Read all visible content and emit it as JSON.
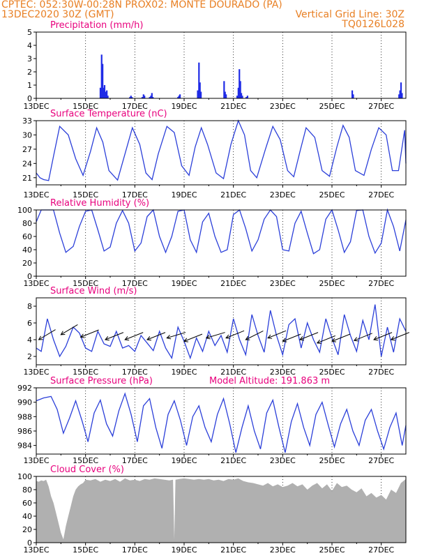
{
  "header": {
    "line1_left": "CPTEC:   052:30W-00:28N   PROX02: MONTE DOURADO (PA)",
    "line2_left": "13DEC2020 30Z (GMT)",
    "line2_right": "Vertical Grid Line: 30Z",
    "line3_right": "TQ0126L028"
  },
  "colors": {
    "header": "#e87f23",
    "title": "#e8007d",
    "line": "#2b3fd9",
    "bar": "#1f2be6",
    "cloud": "#b0b0b0",
    "grid": "#000000",
    "axis": "#000000"
  },
  "chart_data": [
    {
      "id": "precip",
      "type": "bar",
      "title": "Precipitation (mm/h)",
      "ylim": [
        0,
        5
      ],
      "yticks": [
        0,
        1,
        2,
        3,
        4,
        5
      ],
      "x_ticks": [
        "13DEC",
        "15DEC",
        "17DEC",
        "19DEC",
        "21DEC",
        "23DEC",
        "25DEC",
        "27DEC"
      ],
      "x_tick_days": [
        0,
        2,
        4,
        6,
        8,
        10,
        12,
        14
      ],
      "x_range_days": [
        0,
        15
      ],
      "bars": [
        {
          "d": 2.6,
          "v": 0.8
        },
        {
          "d": 2.65,
          "v": 3.3
        },
        {
          "d": 2.69,
          "v": 2.6
        },
        {
          "d": 2.73,
          "v": 0.8
        },
        {
          "d": 2.77,
          "v": 1.0
        },
        {
          "d": 2.81,
          "v": 0.5
        },
        {
          "d": 2.86,
          "v": 0.6
        },
        {
          "d": 2.9,
          "v": 0.2
        },
        {
          "d": 3.8,
          "v": 0.1
        },
        {
          "d": 3.84,
          "v": 0.2
        },
        {
          "d": 3.88,
          "v": 0.1
        },
        {
          "d": 4.3,
          "v": 0.1
        },
        {
          "d": 4.35,
          "v": 0.3
        },
        {
          "d": 4.39,
          "v": 0.2
        },
        {
          "d": 4.6,
          "v": 0.1
        },
        {
          "d": 4.65,
          "v": 0.2
        },
        {
          "d": 4.69,
          "v": 0.4
        },
        {
          "d": 4.73,
          "v": 0.1
        },
        {
          "d": 5.75,
          "v": 0.1
        },
        {
          "d": 5.79,
          "v": 0.2
        },
        {
          "d": 5.83,
          "v": 0.3
        },
        {
          "d": 6.55,
          "v": 0.6
        },
        {
          "d": 6.6,
          "v": 2.7
        },
        {
          "d": 6.64,
          "v": 1.2
        },
        {
          "d": 6.68,
          "v": 0.5
        },
        {
          "d": 7.62,
          "v": 1.3
        },
        {
          "d": 7.66,
          "v": 0.5
        },
        {
          "d": 7.7,
          "v": 0.3
        },
        {
          "d": 8.15,
          "v": 0.2
        },
        {
          "d": 8.2,
          "v": 0.8
        },
        {
          "d": 8.24,
          "v": 2.2
        },
        {
          "d": 8.28,
          "v": 1.3
        },
        {
          "d": 8.32,
          "v": 0.4
        },
        {
          "d": 8.36,
          "v": 0.2
        },
        {
          "d": 8.52,
          "v": 0.1
        },
        {
          "d": 8.57,
          "v": 0.2
        },
        {
          "d": 12.82,
          "v": 0.6
        },
        {
          "d": 12.86,
          "v": 0.3
        },
        {
          "d": 14.72,
          "v": 0.3
        },
        {
          "d": 14.76,
          "v": 0.6
        },
        {
          "d": 14.8,
          "v": 1.2
        },
        {
          "d": 14.84,
          "v": 0.4
        }
      ]
    },
    {
      "id": "temp",
      "type": "line",
      "title": "Surface Temperature (nC)",
      "ylim": [
        19.5,
        33
      ],
      "yticks": [
        21,
        24,
        27,
        30,
        33
      ],
      "x_ticks": [
        "13DEC",
        "15DEC",
        "17DEC",
        "19DEC",
        "21DEC",
        "23DEC",
        "25DEC",
        "27DEC"
      ],
      "x_tick_days": [
        0,
        2,
        4,
        6,
        8,
        10,
        12,
        14
      ],
      "x_range_days": [
        0,
        15
      ],
      "x": [
        0,
        0.15,
        0.3,
        0.5,
        0.7,
        0.95,
        1.3,
        1.6,
        1.9,
        2.2,
        2.45,
        2.7,
        2.95,
        3.3,
        3.6,
        3.9,
        4.2,
        4.45,
        4.7,
        4.95,
        5.3,
        5.6,
        5.9,
        6.2,
        6.45,
        6.7,
        6.95,
        7.3,
        7.6,
        7.9,
        8.2,
        8.45,
        8.7,
        8.95,
        9.3,
        9.6,
        9.9,
        10.2,
        10.45,
        10.7,
        10.95,
        11.3,
        11.6,
        11.9,
        12.2,
        12.45,
        12.7,
        12.95,
        13.3,
        13.6,
        13.9,
        14.2,
        14.45,
        14.7,
        14.95,
        15.0
      ],
      "y": [
        22.0,
        21.0,
        20.6,
        20.4,
        25.5,
        31.8,
        30.0,
        25.0,
        21.5,
        26.5,
        31.5,
        28.5,
        22.5,
        20.5,
        26.0,
        31.5,
        28.0,
        22.0,
        20.6,
        26.0,
        31.8,
        30.5,
        23.5,
        21.5,
        27.5,
        31.5,
        28.0,
        22.0,
        20.8,
        28.0,
        33.0,
        30.0,
        22.5,
        21.0,
        27.0,
        31.8,
        29.0,
        22.5,
        21.2,
        26.5,
        31.5,
        29.5,
        22.5,
        21.3,
        27.5,
        32.0,
        29.5,
        22.5,
        21.5,
        27.0,
        31.5,
        30.0,
        22.5,
        22.5,
        31.0,
        24.0
      ]
    },
    {
      "id": "rh",
      "type": "line",
      "title": "Relative Humidity (%)",
      "ylim": [
        0,
        100
      ],
      "yticks": [
        0,
        20,
        40,
        60,
        80,
        100
      ],
      "x_ticks": [
        "13DEC",
        "15DEC",
        "17DEC",
        "19DEC",
        "21DEC",
        "23DEC",
        "25DEC",
        "27DEC"
      ],
      "x_tick_days": [
        0,
        2,
        4,
        6,
        8,
        10,
        12,
        14
      ],
      "x_range_days": [
        0,
        15
      ],
      "x": [
        0,
        0.2,
        0.45,
        0.7,
        0.95,
        1.2,
        1.5,
        1.75,
        2.0,
        2.25,
        2.5,
        2.75,
        3.0,
        3.25,
        3.5,
        3.75,
        4.0,
        4.25,
        4.5,
        4.75,
        5.0,
        5.25,
        5.5,
        5.75,
        6.0,
        6.25,
        6.5,
        6.75,
        7.0,
        7.25,
        7.5,
        7.75,
        8.0,
        8.25,
        8.5,
        8.75,
        9.0,
        9.25,
        9.5,
        9.75,
        10.0,
        10.25,
        10.5,
        10.75,
        11.0,
        11.25,
        11.5,
        11.75,
        12.0,
        12.25,
        12.5,
        12.75,
        13.0,
        13.25,
        13.5,
        13.75,
        14.0,
        14.25,
        14.5,
        14.75,
        15.0
      ],
      "y": [
        82,
        100,
        100,
        100,
        65,
        36,
        45,
        75,
        98,
        100,
        70,
        38,
        44,
        80,
        99,
        80,
        38,
        50,
        90,
        100,
        60,
        36,
        60,
        98,
        100,
        55,
        36,
        82,
        95,
        60,
        36,
        40,
        93,
        100,
        72,
        38,
        55,
        86,
        100,
        90,
        40,
        38,
        80,
        98,
        65,
        34,
        40,
        86,
        100,
        70,
        36,
        52,
        99,
        100,
        60,
        35,
        50,
        100,
        75,
        38,
        85
      ]
    },
    {
      "id": "wind",
      "type": "line",
      "title": "Surface Wind (m/s)",
      "ylim": [
        1,
        9
      ],
      "yticks": [
        2,
        4,
        6,
        8
      ],
      "x_ticks": [
        "13DEC",
        "15DEC",
        "17DEC",
        "19DEC",
        "21DEC",
        "23DEC",
        "25DEC",
        "27DEC"
      ],
      "x_tick_days": [
        0,
        2,
        4,
        6,
        8,
        10,
        12,
        14
      ],
      "x_range_days": [
        0,
        15
      ],
      "x": [
        0,
        0.2,
        0.45,
        0.7,
        0.95,
        1.2,
        1.5,
        1.75,
        2.0,
        2.25,
        2.5,
        2.75,
        3.0,
        3.25,
        3.5,
        3.75,
        4.0,
        4.25,
        4.5,
        4.75,
        5.0,
        5.25,
        5.5,
        5.75,
        6.0,
        6.25,
        6.5,
        6.75,
        7.0,
        7.25,
        7.5,
        7.75,
        8.0,
        8.25,
        8.5,
        8.75,
        9.0,
        9.25,
        9.5,
        9.75,
        10.0,
        10.25,
        10.5,
        10.75,
        11.0,
        11.25,
        11.5,
        11.75,
        12.0,
        12.25,
        12.5,
        12.75,
        13.0,
        13.25,
        13.5,
        13.75,
        14.0,
        14.25,
        14.5,
        14.75,
        15.0
      ],
      "y": [
        3.0,
        2.6,
        6.5,
        4.0,
        2.0,
        3.2,
        5.5,
        4.8,
        3.0,
        2.6,
        5.0,
        3.5,
        3.2,
        5.0,
        3.0,
        3.3,
        2.6,
        4.5,
        3.6,
        2.7,
        5.0,
        3.0,
        1.8,
        5.5,
        3.8,
        1.8,
        4.2,
        2.6,
        5.0,
        3.3,
        4.5,
        2.5,
        6.5,
        4.0,
        2.2,
        7.0,
        4.5,
        2.5,
        7.5,
        4.5,
        2.2,
        5.8,
        6.5,
        3.0,
        6.0,
        4.0,
        2.5,
        6.5,
        4.2,
        2.2,
        7.0,
        4.5,
        2.6,
        6.3,
        4.0,
        8.2,
        2.0,
        5.5,
        2.5,
        6.5,
        5.0
      ],
      "arrows": [
        {
          "d": 0.1,
          "v": 4.0,
          "dx": 1,
          "dy": 0.6
        },
        {
          "d": 1.0,
          "v": 4.6,
          "dx": 1,
          "dy": 0.6
        },
        {
          "d": 1.8,
          "v": 4.3,
          "dx": 1,
          "dy": 0.4
        },
        {
          "d": 2.8,
          "v": 4.0,
          "dx": 1,
          "dy": 0.4
        },
        {
          "d": 3.6,
          "v": 4.0,
          "dx": 1,
          "dy": 0.4
        },
        {
          "d": 4.5,
          "v": 4.0,
          "dx": 1,
          "dy": 0.4
        },
        {
          "d": 5.3,
          "v": 4.2,
          "dx": 1,
          "dy": 0.3
        },
        {
          "d": 6.0,
          "v": 3.8,
          "dx": 1,
          "dy": 0.4
        },
        {
          "d": 6.9,
          "v": 4.2,
          "dx": 1,
          "dy": 0.3
        },
        {
          "d": 7.7,
          "v": 4.2,
          "dx": 1,
          "dy": 0.4
        },
        {
          "d": 8.5,
          "v": 4.0,
          "dx": 1,
          "dy": 0.5
        },
        {
          "d": 9.4,
          "v": 4.2,
          "dx": 1,
          "dy": 0.4
        },
        {
          "d": 10.0,
          "v": 3.8,
          "dx": 1,
          "dy": 0.4
        },
        {
          "d": 10.7,
          "v": 4.0,
          "dx": 1,
          "dy": 0.4
        },
        {
          "d": 11.4,
          "v": 3.6,
          "dx": 1,
          "dy": 0.4
        },
        {
          "d": 12.0,
          "v": 3.8,
          "dx": 1,
          "dy": 0.4
        },
        {
          "d": 12.9,
          "v": 3.9,
          "dx": 1,
          "dy": 0.4
        },
        {
          "d": 13.7,
          "v": 4.0,
          "dx": 1,
          "dy": 0.4
        },
        {
          "d": 14.4,
          "v": 4.0,
          "dx": 1,
          "dy": 0.4
        }
      ]
    },
    {
      "id": "press",
      "type": "line",
      "title": "Surface Pressure (hPa)",
      "subtitle": "Model Altitude: 191.863 m",
      "ylim": [
        982.8,
        992
      ],
      "yticks": [
        984,
        986,
        988,
        990,
        992
      ],
      "x_ticks": [
        "13DEC",
        "15DEC",
        "17DEC",
        "19DEC",
        "21DEC",
        "23DEC",
        "25DEC",
        "27DEC"
      ],
      "x_tick_days": [
        0,
        2,
        4,
        6,
        8,
        10,
        12,
        14
      ],
      "x_range_days": [
        0,
        15
      ],
      "x": [
        0,
        0.3,
        0.6,
        0.85,
        1.1,
        1.35,
        1.6,
        1.85,
        2.1,
        2.35,
        2.6,
        2.85,
        3.1,
        3.35,
        3.6,
        3.85,
        4.1,
        4.35,
        4.6,
        4.85,
        5.1,
        5.35,
        5.6,
        5.85,
        6.1,
        6.35,
        6.6,
        6.85,
        7.1,
        7.35,
        7.6,
        7.85,
        8.1,
        8.35,
        8.6,
        8.85,
        9.1,
        9.35,
        9.6,
        9.85,
        10.1,
        10.35,
        10.6,
        10.85,
        11.1,
        11.35,
        11.6,
        11.85,
        12.1,
        12.35,
        12.6,
        12.85,
        13.1,
        13.35,
        13.6,
        13.85,
        14.1,
        14.35,
        14.6,
        14.85,
        15.0
      ],
      "y": [
        990.2,
        990.6,
        990.8,
        989.0,
        985.7,
        987.8,
        990.2,
        987.5,
        984.5,
        988.5,
        990.3,
        987.0,
        985.3,
        988.8,
        991.2,
        988.3,
        984.5,
        989.5,
        990.5,
        986.5,
        983.6,
        988.3,
        990.2,
        987.5,
        984.0,
        988.0,
        989.5,
        986.5,
        984.5,
        988.3,
        990.5,
        987.0,
        983.0,
        986.5,
        989.5,
        986.0,
        983.5,
        988.5,
        990.3,
        986.5,
        983.0,
        987.3,
        989.8,
        986.5,
        984.0,
        988.3,
        990.0,
        986.8,
        983.8,
        987.0,
        989.0,
        986.0,
        984.0,
        987.5,
        989.0,
        986.0,
        983.5,
        986.5,
        988.5,
        984.0,
        986.8
      ]
    },
    {
      "id": "cloud",
      "type": "area",
      "title": "Cloud Cover (%)",
      "ylim": [
        0,
        100
      ],
      "yticks": [
        0,
        20,
        40,
        60,
        80,
        100
      ],
      "x_ticks": [
        "13DEC",
        "15DEC",
        "17DEC",
        "19DEC",
        "21DEC",
        "23DEC",
        "25DEC",
        "27DEC"
      ],
      "x_tick_days": [
        0,
        2,
        4,
        6,
        8,
        10,
        12,
        14
      ],
      "x_range_days": [
        0,
        15
      ],
      "x": [
        0,
        0.1,
        0.2,
        0.3,
        0.4,
        0.5,
        0.6,
        0.7,
        0.8,
        0.9,
        1.0,
        1.1,
        1.2,
        1.3,
        1.4,
        1.5,
        1.6,
        1.7,
        1.8,
        1.9,
        2.0,
        2.2,
        2.4,
        2.6,
        2.8,
        3.0,
        3.2,
        3.4,
        3.6,
        3.8,
        4.0,
        4.2,
        4.4,
        4.6,
        4.8,
        5.0,
        5.2,
        5.4,
        5.55,
        5.6,
        5.65,
        5.8,
        6.0,
        6.2,
        6.4,
        6.6,
        6.8,
        7.0,
        7.2,
        7.4,
        7.6,
        7.8,
        8.0,
        8.2,
        8.4,
        8.6,
        8.8,
        9.0,
        9.2,
        9.4,
        9.6,
        9.8,
        10.0,
        10.2,
        10.4,
        10.6,
        10.8,
        11.0,
        11.2,
        11.4,
        11.6,
        11.8,
        12.0,
        12.2,
        12.4,
        12.6,
        12.8,
        13.0,
        13.2,
        13.4,
        13.6,
        13.8,
        14.0,
        14.2,
        14.4,
        14.6,
        14.8,
        15.0
      ],
      "y": [
        93,
        92,
        94,
        93,
        95,
        85,
        70,
        60,
        45,
        30,
        15,
        5,
        25,
        40,
        55,
        70,
        80,
        85,
        88,
        90,
        95,
        94,
        96,
        92,
        95,
        93,
        96,
        92,
        97,
        94,
        95,
        93,
        96,
        95,
        97,
        96,
        95,
        94,
        95,
        5,
        95,
        96,
        97,
        96,
        95,
        96,
        95,
        96,
        94,
        95,
        93,
        96,
        95,
        97,
        93,
        91,
        90,
        88,
        86,
        90,
        85,
        88,
        84,
        86,
        90,
        85,
        88,
        80,
        86,
        90,
        82,
        88,
        78,
        90,
        84,
        86,
        80,
        76,
        82,
        70,
        75,
        68,
        72,
        65,
        80,
        75,
        90,
        96
      ]
    }
  ]
}
